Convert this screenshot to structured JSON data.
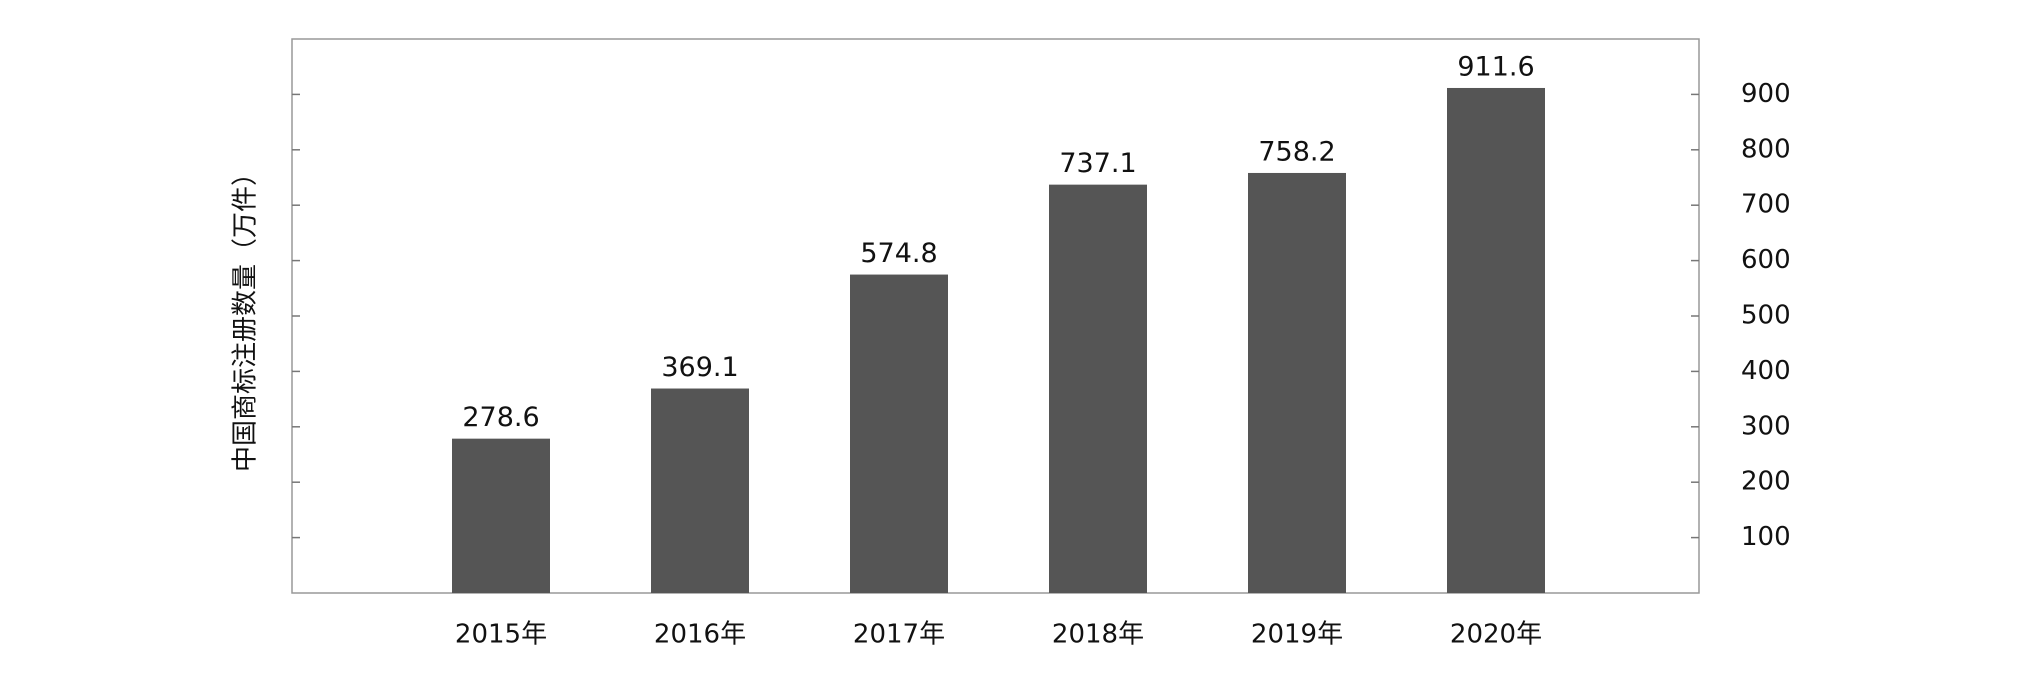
{
  "chart_data": {
    "type": "bar",
    "y_label": "中国商标注册数量（万件）",
    "categories": [
      "2015年",
      "2016年",
      "2017年",
      "2018年",
      "2019年",
      "2020年"
    ],
    "values": [
      278.6,
      369.1,
      574.8,
      737.1,
      758.2,
      911.6
    ],
    "color": "#555555",
    "ylim": [
      0,
      1000
    ],
    "yticks": [
      100,
      200,
      300,
      400,
      500,
      600,
      700,
      800,
      900
    ]
  }
}
